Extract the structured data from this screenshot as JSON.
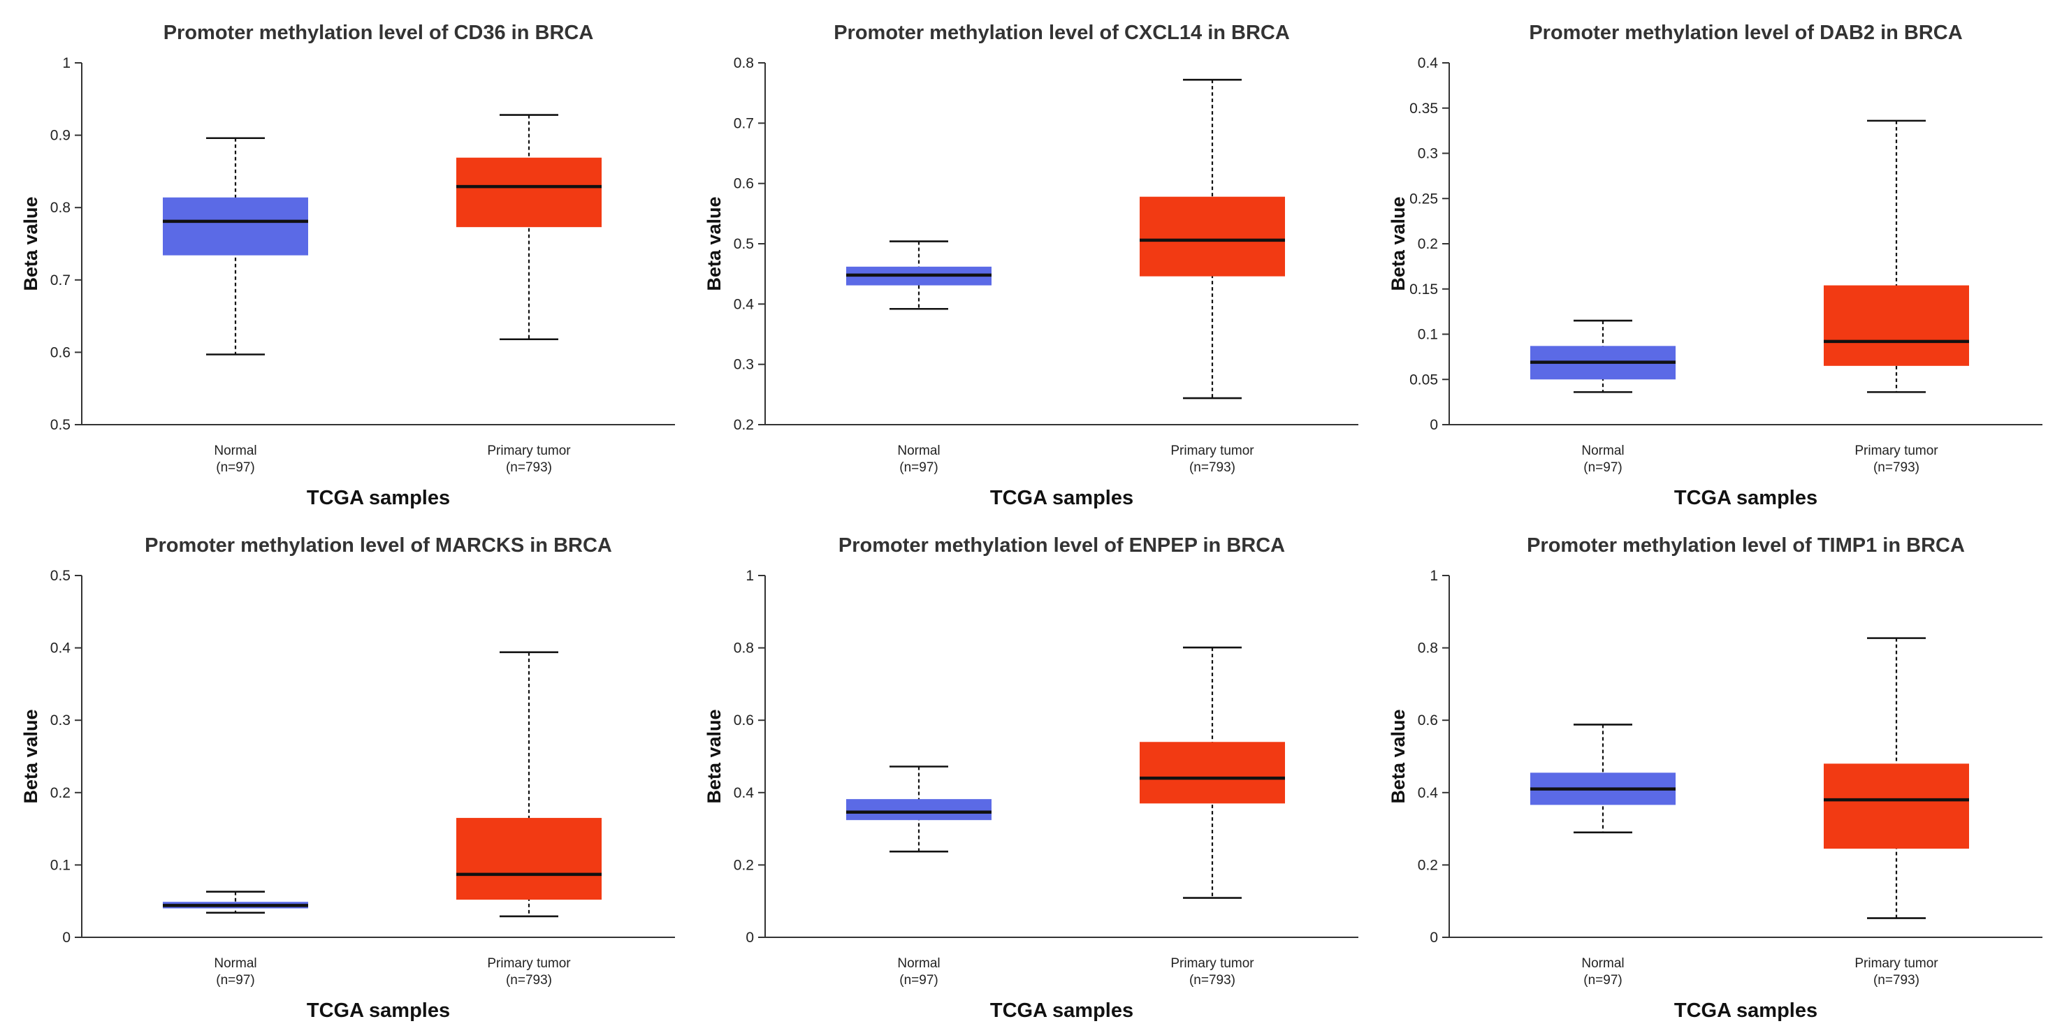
{
  "colors": {
    "normal": "#5b6ae6",
    "tumor": "#f23a13"
  },
  "chart_data": [
    {
      "type": "box",
      "title": "Promoter methylation level of CD36 in BRCA",
      "xlabel": "TCGA samples",
      "ylabel": "Beta value",
      "ylim": [
        0.5,
        1
      ],
      "yticks": [
        0.5,
        0.6,
        0.7,
        0.8,
        0.9,
        1
      ],
      "ytick_labels": [
        "0.5",
        "0.6",
        "0.7",
        "0.8",
        "0.9",
        "1"
      ],
      "groups": [
        {
          "name": "Normal",
          "n_label": "(n=97)",
          "color": "normal",
          "min": 0.597,
          "q1": 0.734,
          "median": 0.781,
          "q3": 0.814,
          "max": 0.896
        },
        {
          "name": "Primary tumor",
          "n_label": "(n=793)",
          "color": "tumor",
          "min": 0.618,
          "q1": 0.773,
          "median": 0.829,
          "q3": 0.869,
          "max": 0.928
        }
      ]
    },
    {
      "type": "box",
      "title": "Promoter methylation level of CXCL14 in BRCA",
      "xlabel": "TCGA samples",
      "ylabel": "Beta value",
      "ylim": [
        0.2,
        0.8
      ],
      "yticks": [
        0.2,
        0.3,
        0.4,
        0.5,
        0.6,
        0.7,
        0.8
      ],
      "ytick_labels": [
        "0.2",
        "0.3",
        "0.4",
        "0.5",
        "0.6",
        "0.7",
        "0.8"
      ],
      "groups": [
        {
          "name": "Normal",
          "n_label": "(n=97)",
          "color": "normal",
          "min": 0.392,
          "q1": 0.431,
          "median": 0.448,
          "q3": 0.462,
          "max": 0.504
        },
        {
          "name": "Primary tumor",
          "n_label": "(n=793)",
          "color": "tumor",
          "min": 0.244,
          "q1": 0.446,
          "median": 0.506,
          "q3": 0.578,
          "max": 0.772
        }
      ]
    },
    {
      "type": "box",
      "title": "Promoter methylation level of DAB2 in BRCA",
      "xlabel": "TCGA samples",
      "ylabel": "Beta value",
      "ylim": [
        0,
        0.4
      ],
      "yticks": [
        0,
        0.05,
        0.1,
        0.15,
        0.2,
        0.25,
        0.3,
        0.35,
        0.4
      ],
      "ytick_labels": [
        "0",
        "0.05",
        "0.1",
        "0.15",
        "0.2",
        "0.25",
        "0.3",
        "0.35",
        "0.4"
      ],
      "groups": [
        {
          "name": "Normal",
          "n_label": "(n=97)",
          "color": "normal",
          "min": 0.036,
          "q1": 0.05,
          "median": 0.069,
          "q3": 0.087,
          "max": 0.115
        },
        {
          "name": "Primary tumor",
          "n_label": "(n=793)",
          "color": "tumor",
          "min": 0.036,
          "q1": 0.065,
          "median": 0.092,
          "q3": 0.154,
          "max": 0.336
        }
      ]
    },
    {
      "type": "box",
      "title": "Promoter methylation level of MARCKS in BRCA",
      "xlabel": "TCGA samples",
      "ylabel": "Beta value",
      "ylim": [
        0,
        0.5
      ],
      "yticks": [
        0,
        0.1,
        0.2,
        0.3,
        0.4,
        0.5
      ],
      "ytick_labels": [
        "0",
        "0.1",
        "0.2",
        "0.3",
        "0.4",
        "0.5"
      ],
      "groups": [
        {
          "name": "Normal",
          "n_label": "(n=97)",
          "color": "normal",
          "min": 0.034,
          "q1": 0.04,
          "median": 0.044,
          "q3": 0.049,
          "max": 0.063
        },
        {
          "name": "Primary tumor",
          "n_label": "(n=793)",
          "color": "tumor",
          "min": 0.029,
          "q1": 0.052,
          "median": 0.087,
          "q3": 0.165,
          "max": 0.394
        }
      ]
    },
    {
      "type": "box",
      "title": "Promoter methylation level of ENPEP in BRCA",
      "xlabel": "TCGA samples",
      "ylabel": "Beta value",
      "ylim": [
        0,
        1
      ],
      "yticks": [
        0,
        0.2,
        0.4,
        0.6,
        0.8,
        1
      ],
      "ytick_labels": [
        "0",
        "0.2",
        "0.4",
        "0.6",
        "0.8",
        "1"
      ],
      "groups": [
        {
          "name": "Normal",
          "n_label": "(n=97)",
          "color": "normal",
          "min": 0.237,
          "q1": 0.324,
          "median": 0.346,
          "q3": 0.382,
          "max": 0.472
        },
        {
          "name": "Primary tumor",
          "n_label": "(n=793)",
          "color": "tumor",
          "min": 0.109,
          "q1": 0.37,
          "median": 0.44,
          "q3": 0.54,
          "max": 0.801
        }
      ]
    },
    {
      "type": "box",
      "title": "Promoter methylation level of TIMP1 in BRCA",
      "xlabel": "TCGA samples",
      "ylabel": "Beta value",
      "ylim": [
        0,
        1
      ],
      "yticks": [
        0,
        0.2,
        0.4,
        0.6,
        0.8,
        1
      ],
      "ytick_labels": [
        "0",
        "0.2",
        "0.4",
        "0.6",
        "0.8",
        "1"
      ],
      "groups": [
        {
          "name": "Normal",
          "n_label": "(n=97)",
          "color": "normal",
          "min": 0.29,
          "q1": 0.366,
          "median": 0.41,
          "q3": 0.455,
          "max": 0.588
        },
        {
          "name": "Primary tumor",
          "n_label": "(n=793)",
          "color": "tumor",
          "min": 0.053,
          "q1": 0.245,
          "median": 0.38,
          "q3": 0.48,
          "max": 0.827
        }
      ]
    }
  ]
}
